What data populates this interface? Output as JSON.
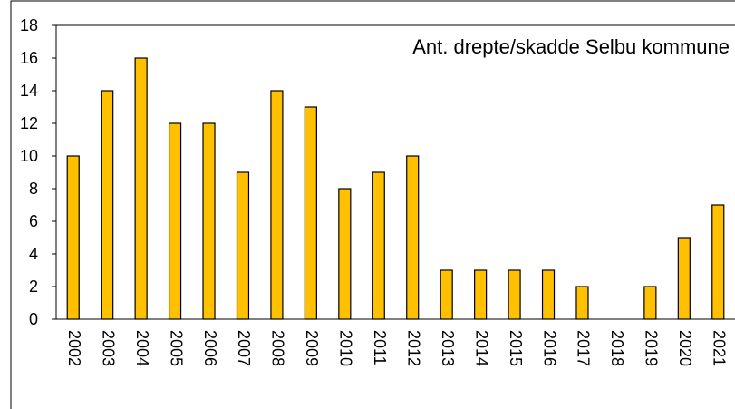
{
  "chart_data": {
    "type": "bar",
    "title": "Ant. drepte/skadde Selbu kommune",
    "categories": [
      "2002",
      "2003",
      "2004",
      "2005",
      "2006",
      "2007",
      "2008",
      "2009",
      "2010",
      "2011",
      "2012",
      "2013",
      "2014",
      "2015",
      "2016",
      "2017",
      "2018",
      "2019",
      "2020",
      "2021"
    ],
    "values": [
      10,
      14,
      16,
      12,
      12,
      9,
      14,
      13,
      8,
      9,
      10,
      3,
      3,
      3,
      3,
      2,
      0,
      2,
      5,
      7
    ],
    "color": "#ffc000",
    "ylim": [
      0,
      18
    ],
    "yticks": [
      0,
      2,
      4,
      6,
      8,
      10,
      12,
      14,
      16,
      18
    ],
    "grid": false
  }
}
